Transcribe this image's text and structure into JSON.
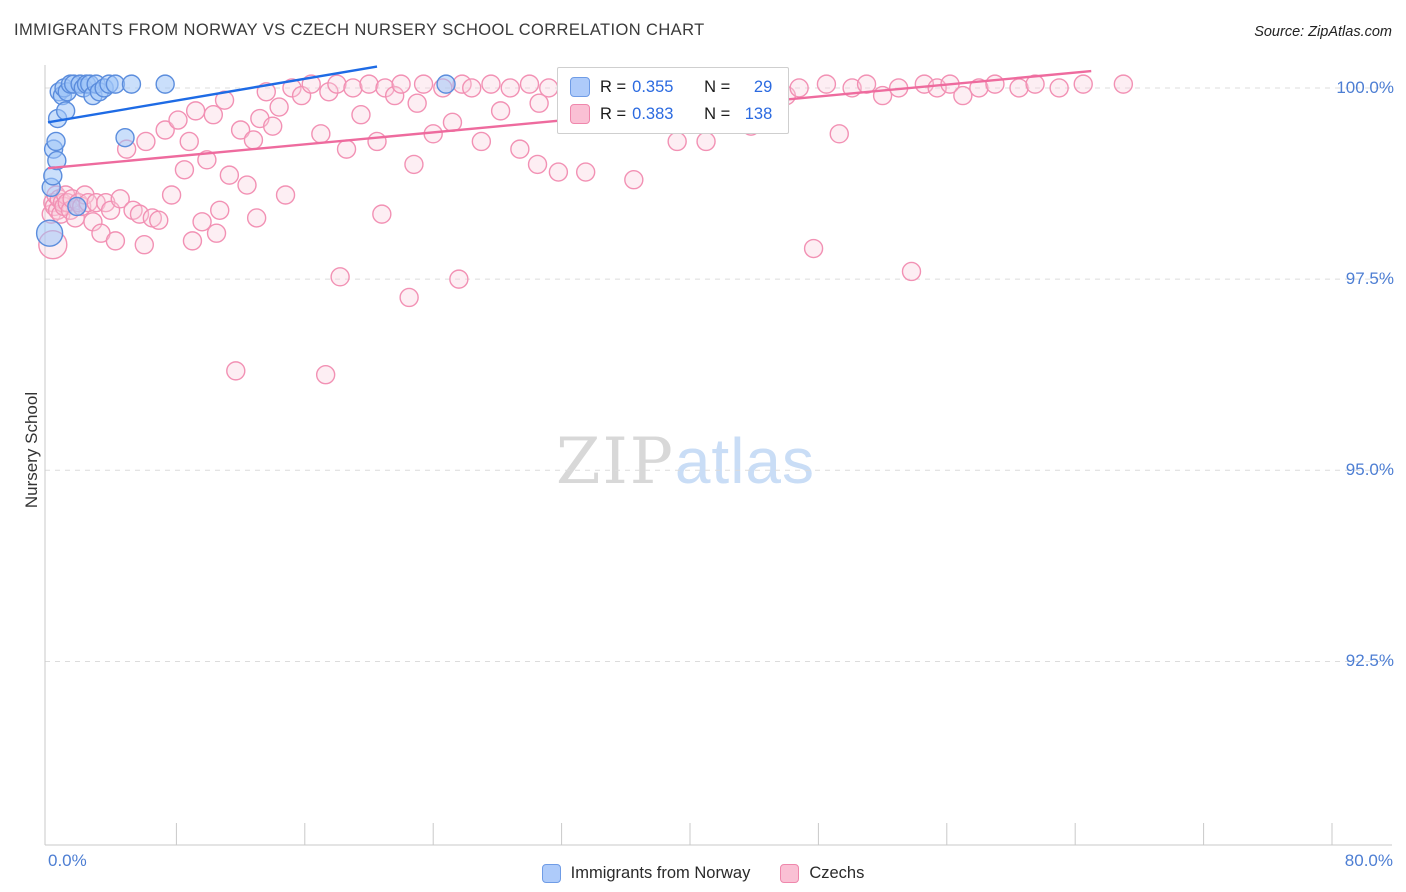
{
  "header": {
    "title": "IMMIGRANTS FROM NORWAY VS CZECH NURSERY SCHOOL CORRELATION CHART",
    "source": "Source: ZipAtlas.com"
  },
  "axes": {
    "y_label": "Nursery School",
    "y_ticks": [
      "100.0%",
      "97.5%",
      "95.0%",
      "92.5%"
    ],
    "x_min_label": "0.0%",
    "x_max_label": "80.0%"
  },
  "legend_box": {
    "rows": [
      {
        "series": "Immigrants from Norway",
        "r_label": "R =",
        "r": "0.355",
        "n_label": "N =",
        "n": "29"
      },
      {
        "series": "Czechs",
        "r_label": "R =",
        "r": "0.383",
        "n_label": "N =",
        "n": "138"
      }
    ]
  },
  "bottom_legend": {
    "items": [
      {
        "label": "Immigrants from Norway",
        "color": "#aecbfa"
      },
      {
        "label": "Czechs",
        "color": "#fac0d4"
      }
    ]
  },
  "watermark": {
    "part1": "ZIP",
    "part2": "atlas"
  },
  "colors": {
    "axis_label_blue": "#4d7ed3",
    "norway_stroke": "#5b8ddd",
    "norway_fill": "rgba(158,196,248,0.55)",
    "norway_trend": "#1e6be5",
    "czech_stroke": "#f291b4",
    "czech_fill": "rgba(250,205,222,0.35)",
    "czech_trend": "#ee6b9e"
  },
  "chart_data": {
    "type": "scatter",
    "title": "IMMIGRANTS FROM NORWAY VS CZECH NURSERY SCHOOL CORRELATION CHART",
    "xlabel": "Immigrants from Norway (%)",
    "ylabel": "Nursery School",
    "xlim": [
      0,
      80
    ],
    "ylim": [
      90.1,
      100.3
    ],
    "y_gridlines": [
      100,
      97.5,
      95,
      92.5
    ],
    "x_tick_count": 10,
    "grid": "dashed-horizontal",
    "legend_position": "bottom-center",
    "series": [
      {
        "name": "Immigrants from Norway",
        "R": 0.355,
        "N": 29,
        "stroke": "#5b8ddd",
        "fill": "rgba(158,196,248,0.55)",
        "trend": {
          "color": "#1e6be5",
          "points": [
            [
              0,
              99.55
            ],
            [
              20.5,
              100.28
            ]
          ]
        },
        "points": [
          [
            0.1,
            98.1,
            13
          ],
          [
            0.2,
            98.7
          ],
          [
            0.3,
            98.85
          ],
          [
            0.35,
            99.2
          ],
          [
            0.5,
            99.3
          ],
          [
            0.55,
            99.05
          ],
          [
            0.6,
            99.6
          ],
          [
            0.7,
            99.95
          ],
          [
            0.9,
            99.9
          ],
          [
            1.0,
            100.0
          ],
          [
            1.1,
            99.7
          ],
          [
            1.2,
            99.95
          ],
          [
            1.4,
            100.05
          ],
          [
            1.6,
            100.05
          ],
          [
            1.8,
            98.45
          ],
          [
            2.0,
            100.05
          ],
          [
            2.2,
            100.0
          ],
          [
            2.4,
            100.05
          ],
          [
            2.6,
            100.05
          ],
          [
            2.8,
            99.9
          ],
          [
            3.0,
            100.05
          ],
          [
            3.2,
            99.95
          ],
          [
            3.5,
            100.0
          ],
          [
            3.8,
            100.05
          ],
          [
            4.2,
            100.05
          ],
          [
            4.8,
            99.35
          ],
          [
            5.2,
            100.05
          ],
          [
            7.3,
            100.05
          ],
          [
            24.8,
            100.05
          ]
        ]
      },
      {
        "name": "Czechs",
        "R": 0.383,
        "N": 138,
        "stroke": "#f291b4",
        "fill": "rgba(250,205,222,0.35)",
        "trend": {
          "color": "#ee6b9e",
          "points": [
            [
              0,
              98.95
            ],
            [
              65,
              100.22
            ]
          ]
        },
        "points": [
          [
            0.2,
            98.35
          ],
          [
            0.3,
            97.95,
            14
          ],
          [
            0.3,
            98.5
          ],
          [
            0.4,
            98.45
          ],
          [
            0.5,
            98.6
          ],
          [
            0.6,
            98.4
          ],
          [
            0.7,
            98.55
          ],
          [
            0.8,
            98.35
          ],
          [
            0.9,
            98.5
          ],
          [
            1.0,
            98.45
          ],
          [
            1.1,
            98.6
          ],
          [
            1.2,
            98.5
          ],
          [
            1.4,
            98.4
          ],
          [
            1.5,
            98.55
          ],
          [
            1.7,
            98.3
          ],
          [
            1.9,
            98.5
          ],
          [
            2.1,
            98.45
          ],
          [
            2.3,
            98.6
          ],
          [
            2.5,
            98.5
          ],
          [
            2.8,
            98.25
          ],
          [
            3.0,
            98.5
          ],
          [
            3.3,
            98.1
          ],
          [
            3.6,
            98.5
          ],
          [
            3.9,
            98.4
          ],
          [
            4.2,
            98.0
          ],
          [
            4.5,
            98.55
          ],
          [
            4.9,
            99.2
          ],
          [
            5.3,
            98.4
          ],
          [
            5.7,
            98.35
          ],
          [
            6.0,
            97.95
          ],
          [
            6.1,
            99.3
          ],
          [
            6.5,
            98.3
          ],
          [
            6.9,
            98.27
          ],
          [
            7.3,
            99.45
          ],
          [
            7.7,
            98.6
          ],
          [
            8.1,
            99.58
          ],
          [
            8.5,
            98.93
          ],
          [
            8.8,
            99.3
          ],
          [
            9.0,
            98.0
          ],
          [
            9.2,
            99.7
          ],
          [
            9.6,
            98.25
          ],
          [
            9.9,
            99.06
          ],
          [
            10.3,
            99.65
          ],
          [
            10.5,
            98.1
          ],
          [
            10.7,
            98.4
          ],
          [
            11.0,
            99.84
          ],
          [
            11.3,
            98.86
          ],
          [
            11.7,
            96.3
          ],
          [
            12.0,
            99.45
          ],
          [
            12.4,
            98.73
          ],
          [
            12.8,
            99.32
          ],
          [
            13.0,
            98.3
          ],
          [
            13.2,
            99.6
          ],
          [
            13.6,
            99.95
          ],
          [
            14.0,
            99.5
          ],
          [
            14.4,
            99.75
          ],
          [
            14.8,
            98.6
          ],
          [
            15.2,
            100.0
          ],
          [
            15.8,
            99.9
          ],
          [
            16.4,
            100.05
          ],
          [
            17.0,
            99.4
          ],
          [
            17.3,
            96.25
          ],
          [
            17.5,
            99.95
          ],
          [
            18.0,
            100.05
          ],
          [
            18.2,
            97.53
          ],
          [
            18.6,
            99.2
          ],
          [
            19.0,
            100.0
          ],
          [
            19.5,
            99.65
          ],
          [
            20.0,
            100.05
          ],
          [
            20.5,
            99.3
          ],
          [
            20.8,
            98.35
          ],
          [
            21.0,
            100.0
          ],
          [
            21.6,
            99.9
          ],
          [
            22.0,
            100.05
          ],
          [
            22.5,
            97.26
          ],
          [
            22.8,
            99.0
          ],
          [
            23.0,
            99.8
          ],
          [
            23.4,
            100.05
          ],
          [
            24.0,
            99.4
          ],
          [
            24.6,
            100.0
          ],
          [
            25.2,
            99.55
          ],
          [
            25.6,
            97.5
          ],
          [
            25.8,
            100.05
          ],
          [
            26.4,
            100.0
          ],
          [
            27.0,
            99.3
          ],
          [
            27.6,
            100.05
          ],
          [
            28.2,
            99.7
          ],
          [
            28.8,
            100.0
          ],
          [
            29.4,
            99.2
          ],
          [
            30.0,
            100.05
          ],
          [
            30.5,
            99.0
          ],
          [
            30.6,
            99.8
          ],
          [
            31.2,
            100.0
          ],
          [
            31.8,
            98.9
          ],
          [
            32.4,
            100.05
          ],
          [
            33.0,
            99.6
          ],
          [
            33.5,
            98.9
          ],
          [
            33.6,
            100.0
          ],
          [
            34.2,
            99.9
          ],
          [
            34.8,
            100.05
          ],
          [
            35.5,
            100.0
          ],
          [
            36.2,
            100.05
          ],
          [
            36.5,
            98.8
          ],
          [
            37.0,
            99.9
          ],
          [
            37.8,
            100.0
          ],
          [
            38.0,
            99.6
          ],
          [
            38.5,
            100.05
          ],
          [
            39.2,
            99.3
          ],
          [
            40.0,
            100.0
          ],
          [
            40.8,
            100.05
          ],
          [
            41.0,
            99.3
          ],
          [
            41.5,
            99.85
          ],
          [
            42.2,
            100.0
          ],
          [
            43.0,
            100.05
          ],
          [
            43.8,
            99.5
          ],
          [
            44.5,
            100.0
          ],
          [
            45.2,
            100.05
          ],
          [
            46.0,
            99.9
          ],
          [
            46.8,
            100.0
          ],
          [
            47.7,
            97.9
          ],
          [
            48.5,
            100.05
          ],
          [
            49.3,
            99.4
          ],
          [
            50.1,
            100.0
          ],
          [
            51.0,
            100.05
          ],
          [
            52.0,
            99.9
          ],
          [
            53.0,
            100.0
          ],
          [
            53.8,
            97.6
          ],
          [
            54.6,
            100.05
          ],
          [
            55.4,
            100.0
          ],
          [
            56.2,
            100.05
          ],
          [
            57.0,
            99.9
          ],
          [
            58.0,
            100.0
          ],
          [
            59.0,
            100.05
          ],
          [
            60.5,
            100.0
          ],
          [
            61.5,
            100.05
          ],
          [
            63.0,
            100.0
          ],
          [
            64.5,
            100.05
          ],
          [
            67.0,
            100.05
          ]
        ]
      }
    ]
  }
}
